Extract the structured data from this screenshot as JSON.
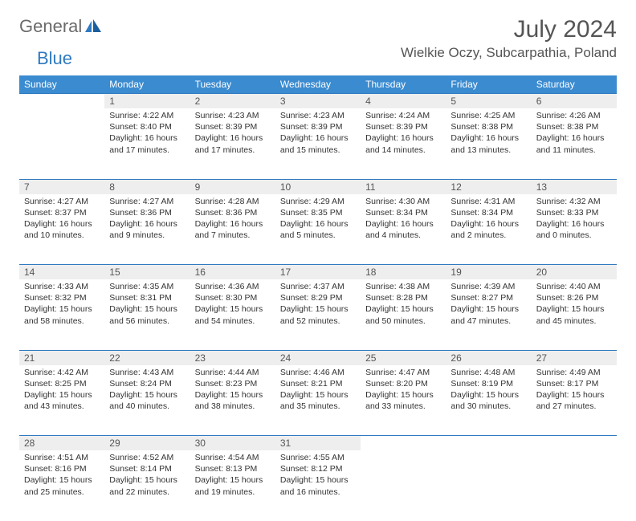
{
  "brand": {
    "part1": "General",
    "part2": "Blue"
  },
  "title": "July 2024",
  "location": "Wielkie Oczy, Subcarpathia, Poland",
  "colors": {
    "header_bg": "#3b8bd0",
    "header_text": "#ffffff",
    "daynum_bg": "#eeeeee",
    "border": "#2f7ac0",
    "brand_gray": "#6b6b6b",
    "brand_blue": "#2f7ac0"
  },
  "weekdays": [
    "Sunday",
    "Monday",
    "Tuesday",
    "Wednesday",
    "Thursday",
    "Friday",
    "Saturday"
  ],
  "weeks": [
    [
      null,
      {
        "n": "1",
        "sr": "Sunrise: 4:22 AM",
        "ss": "Sunset: 8:40 PM",
        "dl": "Daylight: 16 hours and 17 minutes."
      },
      {
        "n": "2",
        "sr": "Sunrise: 4:23 AM",
        "ss": "Sunset: 8:39 PM",
        "dl": "Daylight: 16 hours and 17 minutes."
      },
      {
        "n": "3",
        "sr": "Sunrise: 4:23 AM",
        "ss": "Sunset: 8:39 PM",
        "dl": "Daylight: 16 hours and 15 minutes."
      },
      {
        "n": "4",
        "sr": "Sunrise: 4:24 AM",
        "ss": "Sunset: 8:39 PM",
        "dl": "Daylight: 16 hours and 14 minutes."
      },
      {
        "n": "5",
        "sr": "Sunrise: 4:25 AM",
        "ss": "Sunset: 8:38 PM",
        "dl": "Daylight: 16 hours and 13 minutes."
      },
      {
        "n": "6",
        "sr": "Sunrise: 4:26 AM",
        "ss": "Sunset: 8:38 PM",
        "dl": "Daylight: 16 hours and 11 minutes."
      }
    ],
    [
      {
        "n": "7",
        "sr": "Sunrise: 4:27 AM",
        "ss": "Sunset: 8:37 PM",
        "dl": "Daylight: 16 hours and 10 minutes."
      },
      {
        "n": "8",
        "sr": "Sunrise: 4:27 AM",
        "ss": "Sunset: 8:36 PM",
        "dl": "Daylight: 16 hours and 9 minutes."
      },
      {
        "n": "9",
        "sr": "Sunrise: 4:28 AM",
        "ss": "Sunset: 8:36 PM",
        "dl": "Daylight: 16 hours and 7 minutes."
      },
      {
        "n": "10",
        "sr": "Sunrise: 4:29 AM",
        "ss": "Sunset: 8:35 PM",
        "dl": "Daylight: 16 hours and 5 minutes."
      },
      {
        "n": "11",
        "sr": "Sunrise: 4:30 AM",
        "ss": "Sunset: 8:34 PM",
        "dl": "Daylight: 16 hours and 4 minutes."
      },
      {
        "n": "12",
        "sr": "Sunrise: 4:31 AM",
        "ss": "Sunset: 8:34 PM",
        "dl": "Daylight: 16 hours and 2 minutes."
      },
      {
        "n": "13",
        "sr": "Sunrise: 4:32 AM",
        "ss": "Sunset: 8:33 PM",
        "dl": "Daylight: 16 hours and 0 minutes."
      }
    ],
    [
      {
        "n": "14",
        "sr": "Sunrise: 4:33 AM",
        "ss": "Sunset: 8:32 PM",
        "dl": "Daylight: 15 hours and 58 minutes."
      },
      {
        "n": "15",
        "sr": "Sunrise: 4:35 AM",
        "ss": "Sunset: 8:31 PM",
        "dl": "Daylight: 15 hours and 56 minutes."
      },
      {
        "n": "16",
        "sr": "Sunrise: 4:36 AM",
        "ss": "Sunset: 8:30 PM",
        "dl": "Daylight: 15 hours and 54 minutes."
      },
      {
        "n": "17",
        "sr": "Sunrise: 4:37 AM",
        "ss": "Sunset: 8:29 PM",
        "dl": "Daylight: 15 hours and 52 minutes."
      },
      {
        "n": "18",
        "sr": "Sunrise: 4:38 AM",
        "ss": "Sunset: 8:28 PM",
        "dl": "Daylight: 15 hours and 50 minutes."
      },
      {
        "n": "19",
        "sr": "Sunrise: 4:39 AM",
        "ss": "Sunset: 8:27 PM",
        "dl": "Daylight: 15 hours and 47 minutes."
      },
      {
        "n": "20",
        "sr": "Sunrise: 4:40 AM",
        "ss": "Sunset: 8:26 PM",
        "dl": "Daylight: 15 hours and 45 minutes."
      }
    ],
    [
      {
        "n": "21",
        "sr": "Sunrise: 4:42 AM",
        "ss": "Sunset: 8:25 PM",
        "dl": "Daylight: 15 hours and 43 minutes."
      },
      {
        "n": "22",
        "sr": "Sunrise: 4:43 AM",
        "ss": "Sunset: 8:24 PM",
        "dl": "Daylight: 15 hours and 40 minutes."
      },
      {
        "n": "23",
        "sr": "Sunrise: 4:44 AM",
        "ss": "Sunset: 8:23 PM",
        "dl": "Daylight: 15 hours and 38 minutes."
      },
      {
        "n": "24",
        "sr": "Sunrise: 4:46 AM",
        "ss": "Sunset: 8:21 PM",
        "dl": "Daylight: 15 hours and 35 minutes."
      },
      {
        "n": "25",
        "sr": "Sunrise: 4:47 AM",
        "ss": "Sunset: 8:20 PM",
        "dl": "Daylight: 15 hours and 33 minutes."
      },
      {
        "n": "26",
        "sr": "Sunrise: 4:48 AM",
        "ss": "Sunset: 8:19 PM",
        "dl": "Daylight: 15 hours and 30 minutes."
      },
      {
        "n": "27",
        "sr": "Sunrise: 4:49 AM",
        "ss": "Sunset: 8:17 PM",
        "dl": "Daylight: 15 hours and 27 minutes."
      }
    ],
    [
      {
        "n": "28",
        "sr": "Sunrise: 4:51 AM",
        "ss": "Sunset: 8:16 PM",
        "dl": "Daylight: 15 hours and 25 minutes."
      },
      {
        "n": "29",
        "sr": "Sunrise: 4:52 AM",
        "ss": "Sunset: 8:14 PM",
        "dl": "Daylight: 15 hours and 22 minutes."
      },
      {
        "n": "30",
        "sr": "Sunrise: 4:54 AM",
        "ss": "Sunset: 8:13 PM",
        "dl": "Daylight: 15 hours and 19 minutes."
      },
      {
        "n": "31",
        "sr": "Sunrise: 4:55 AM",
        "ss": "Sunset: 8:12 PM",
        "dl": "Daylight: 15 hours and 16 minutes."
      },
      null,
      null,
      null
    ]
  ]
}
